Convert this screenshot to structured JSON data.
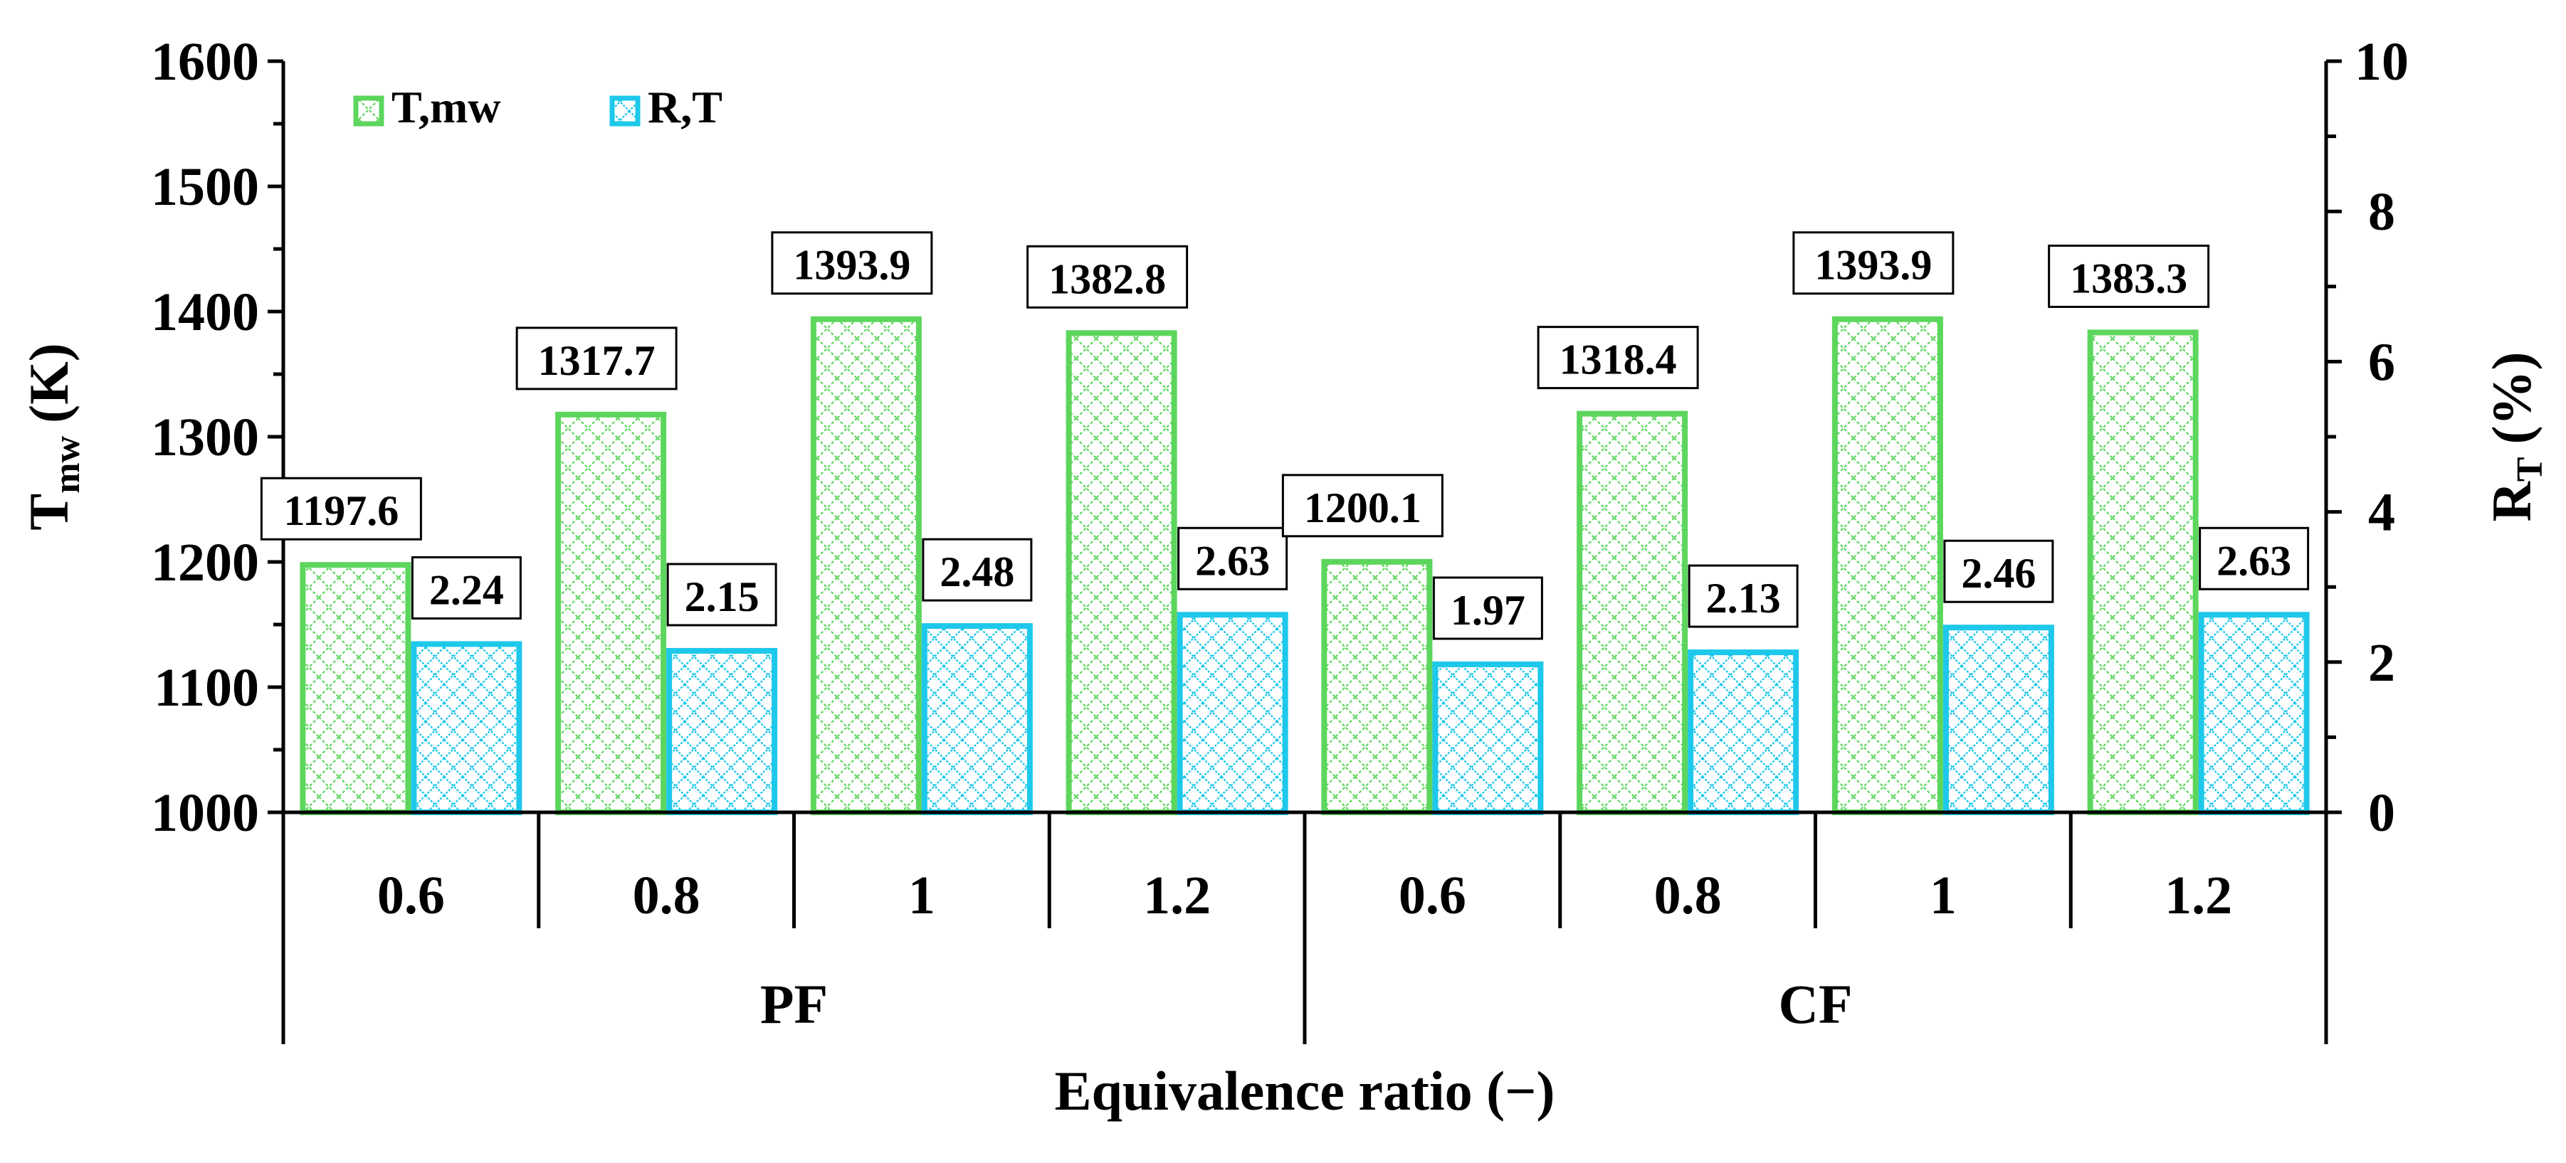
{
  "chart_data": {
    "type": "bar",
    "xlabel": "Equivalence ratio (−)",
    "ylabel_left": {
      "main": "T",
      "sub": "mw",
      "unit": "(K)"
    },
    "ylabel_right": {
      "main": "R",
      "sub": "T",
      "unit": "(%)"
    },
    "ylim_left": [
      1000,
      1600
    ],
    "yticks_left": [
      1000,
      1100,
      1200,
      1300,
      1400,
      1500,
      1600
    ],
    "ylim_right": [
      0,
      10
    ],
    "yticks_right": [
      0,
      2,
      4,
      6,
      8,
      10
    ],
    "groups": [
      "PF",
      "CF"
    ],
    "categories": [
      "0.6",
      "0.8",
      "1",
      "1.2",
      "0.6",
      "0.8",
      "1",
      "1.2"
    ],
    "category_group": [
      0,
      0,
      0,
      0,
      1,
      1,
      1,
      1
    ],
    "series": [
      {
        "name": "T,mw",
        "axis": "left",
        "color": "#5cd65c",
        "values": [
          1197.6,
          1317.7,
          1393.9,
          1382.8,
          1200.1,
          1318.4,
          1393.9,
          1383.3
        ],
        "labels": [
          "1197.6",
          "1317.7",
          "1393.9",
          "1382.8",
          "1200.1",
          "1318.4",
          "1393.9",
          "1383.3"
        ]
      },
      {
        "name": "R,T",
        "axis": "right",
        "color": "#1ec8ea",
        "values": [
          2.24,
          2.15,
          2.48,
          2.63,
          1.97,
          2.13,
          2.46,
          2.63
        ],
        "labels": [
          "2.24",
          "2.15",
          "2.48",
          "2.63",
          "1.97",
          "2.13",
          "2.46",
          "2.63"
        ]
      }
    ],
    "legend_position": "top-left"
  }
}
